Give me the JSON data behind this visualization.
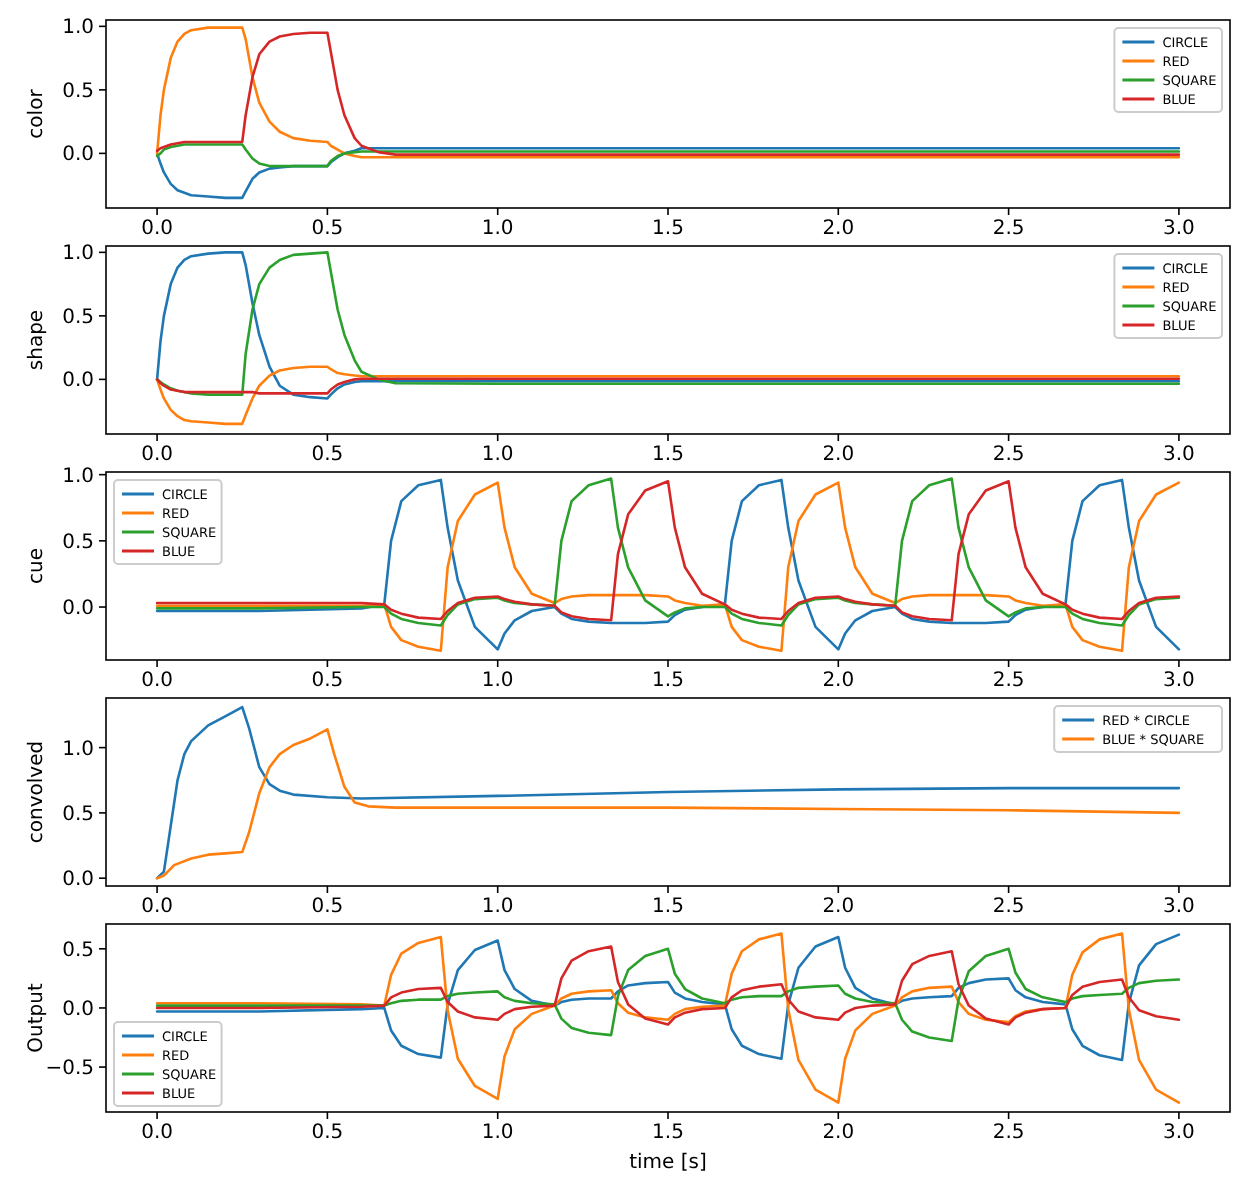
{
  "chart_data": [
    {
      "type": "line",
      "ylabel": "color",
      "xlim": [
        -0.15,
        3.15
      ],
      "ylim": [
        -0.43,
        1.05
      ],
      "xticks": [
        {
          "value": 0,
          "label": "0.0"
        },
        {
          "value": 0.5,
          "label": "0.5"
        },
        {
          "value": 1,
          "label": "1.0"
        },
        {
          "value": 1.5,
          "label": "1.5"
        },
        {
          "value": 2,
          "label": "2.0"
        },
        {
          "value": 2.5,
          "label": "2.5"
        },
        {
          "value": 3,
          "label": "3.0"
        }
      ],
      "yticks": [
        {
          "value": 0,
          "label": "0.0"
        },
        {
          "value": 0.5,
          "label": "0.5"
        },
        {
          "value": 1,
          "label": "1.0"
        }
      ],
      "legend": "top right",
      "x": [
        0,
        0.01,
        0.02,
        0.04,
        0.06,
        0.08,
        0.1,
        0.15,
        0.2,
        0.25,
        0.26,
        0.28,
        0.3,
        0.33,
        0.36,
        0.4,
        0.45,
        0.5,
        0.51,
        0.53,
        0.55,
        0.58,
        0.6,
        0.65,
        0.7,
        1.0,
        1.5,
        2.0,
        2.5,
        3.0
      ],
      "series": [
        {
          "name": "CIRCLE",
          "color": "#1f77b4",
          "values": [
            0,
            -0.08,
            -0.15,
            -0.24,
            -0.29,
            -0.31,
            -0.33,
            -0.34,
            -0.35,
            -0.35,
            -0.3,
            -0.2,
            -0.15,
            -0.12,
            -0.11,
            -0.1,
            -0.1,
            -0.1,
            -0.07,
            -0.03,
            0,
            0.02,
            0.04,
            0.04,
            0.04,
            0.04,
            0.04,
            0.04,
            0.04,
            0.04
          ]
        },
        {
          "name": "RED",
          "color": "#ff7f0e",
          "values": [
            0,
            0.3,
            0.5,
            0.75,
            0.88,
            0.94,
            0.97,
            0.99,
            0.99,
            0.99,
            0.9,
            0.6,
            0.4,
            0.25,
            0.17,
            0.12,
            0.1,
            0.09,
            0.06,
            0.03,
            0.0,
            -0.02,
            -0.03,
            -0.03,
            -0.03,
            -0.03,
            -0.03,
            -0.03,
            -0.03,
            -0.03
          ]
        },
        {
          "name": "SQUARE",
          "color": "#2ca02c",
          "values": [
            -0.02,
            0.0,
            0.03,
            0.05,
            0.06,
            0.07,
            0.07,
            0.07,
            0.07,
            0.07,
            0.03,
            -0.04,
            -0.08,
            -0.1,
            -0.1,
            -0.1,
            -0.1,
            -0.1,
            -0.06,
            -0.02,
            0,
            0.01,
            0.015,
            0.015,
            0.015,
            0.015,
            0.015,
            0.015,
            0.015,
            0.015
          ]
        },
        {
          "name": "BLUE",
          "color": "#d62728",
          "values": [
            0.02,
            0.04,
            0.05,
            0.07,
            0.08,
            0.09,
            0.09,
            0.09,
            0.09,
            0.09,
            0.3,
            0.6,
            0.78,
            0.88,
            0.92,
            0.94,
            0.95,
            0.95,
            0.8,
            0.5,
            0.3,
            0.12,
            0.06,
            0.01,
            -0.01,
            -0.01,
            -0.01,
            -0.01,
            -0.01,
            -0.01
          ]
        }
      ]
    },
    {
      "type": "line",
      "ylabel": "shape",
      "xlim": [
        -0.15,
        3.15
      ],
      "ylim": [
        -0.43,
        1.05
      ],
      "xticks": [
        {
          "value": 0,
          "label": "0.0"
        },
        {
          "value": 0.5,
          "label": "0.5"
        },
        {
          "value": 1,
          "label": "1.0"
        },
        {
          "value": 1.5,
          "label": "1.5"
        },
        {
          "value": 2,
          "label": "2.0"
        },
        {
          "value": 2.5,
          "label": "2.5"
        },
        {
          "value": 3,
          "label": "3.0"
        }
      ],
      "yticks": [
        {
          "value": 0,
          "label": "0.0"
        },
        {
          "value": 0.5,
          "label": "0.5"
        },
        {
          "value": 1,
          "label": "1.0"
        }
      ],
      "legend": "top right",
      "x": [
        0,
        0.01,
        0.02,
        0.04,
        0.06,
        0.08,
        0.1,
        0.15,
        0.2,
        0.25,
        0.26,
        0.28,
        0.3,
        0.33,
        0.36,
        0.4,
        0.45,
        0.5,
        0.51,
        0.53,
        0.55,
        0.58,
        0.6,
        0.65,
        0.7,
        1.0,
        1.5,
        2.0,
        2.5,
        3.0
      ],
      "series": [
        {
          "name": "CIRCLE",
          "color": "#1f77b4",
          "values": [
            0,
            0.3,
            0.5,
            0.75,
            0.88,
            0.94,
            0.97,
            0.99,
            1.0,
            1.0,
            0.9,
            0.6,
            0.35,
            0.1,
            -0.05,
            -0.12,
            -0.14,
            -0.15,
            -0.12,
            -0.07,
            -0.04,
            -0.02,
            -0.015,
            -0.015,
            -0.015,
            -0.015,
            -0.015,
            -0.015,
            -0.015,
            -0.015
          ]
        },
        {
          "name": "RED",
          "color": "#ff7f0e",
          "values": [
            0,
            -0.08,
            -0.15,
            -0.24,
            -0.29,
            -0.32,
            -0.33,
            -0.34,
            -0.35,
            -0.35,
            -0.28,
            -0.15,
            -0.05,
            0.03,
            0.07,
            0.09,
            0.1,
            0.1,
            0.08,
            0.05,
            0.04,
            0.03,
            0.025,
            0.025,
            0.025,
            0.025,
            0.025,
            0.025,
            0.025,
            0.025
          ]
        },
        {
          "name": "SQUARE",
          "color": "#2ca02c",
          "values": [
            0,
            -0.02,
            -0.04,
            -0.07,
            -0.09,
            -0.1,
            -0.11,
            -0.12,
            -0.12,
            -0.12,
            0.2,
            0.55,
            0.75,
            0.88,
            0.94,
            0.98,
            0.99,
            1.0,
            0.85,
            0.55,
            0.35,
            0.15,
            0.06,
            0.0,
            -0.03,
            -0.035,
            -0.035,
            -0.035,
            -0.035,
            -0.035
          ]
        },
        {
          "name": "BLUE",
          "color": "#d62728",
          "values": [
            0,
            -0.03,
            -0.05,
            -0.08,
            -0.09,
            -0.1,
            -0.1,
            -0.1,
            -0.1,
            -0.1,
            -0.1,
            -0.1,
            -0.11,
            -0.11,
            -0.11,
            -0.11,
            -0.11,
            -0.11,
            -0.08,
            -0.04,
            -0.02,
            0,
            0.005,
            0.005,
            0.005,
            0.005,
            0.005,
            0.005,
            0.005,
            0.005
          ]
        }
      ]
    },
    {
      "type": "line",
      "ylabel": "cue",
      "xlim": [
        -0.15,
        3.15
      ],
      "ylim": [
        -0.4,
        1.02
      ],
      "xticks": [
        {
          "value": 0,
          "label": "0.0"
        },
        {
          "value": 0.5,
          "label": "0.5"
        },
        {
          "value": 1,
          "label": "1.0"
        },
        {
          "value": 1.5,
          "label": "1.5"
        },
        {
          "value": 2,
          "label": "2.0"
        },
        {
          "value": 2.5,
          "label": "2.5"
        },
        {
          "value": 3,
          "label": "3.0"
        }
      ],
      "yticks": [
        {
          "value": 0,
          "label": "0.0"
        },
        {
          "value": 0.5,
          "label": "0.5"
        },
        {
          "value": 1,
          "label": "1.0"
        }
      ],
      "legend": "top left",
      "x": [
        0,
        0.3,
        0.6,
        0.667,
        0.687,
        0.717,
        0.767,
        0.833,
        0.853,
        0.883,
        0.933,
        1.0,
        1.02,
        1.05,
        1.1,
        1.167,
        1.187,
        1.217,
        1.267,
        1.333,
        1.353,
        1.383,
        1.433,
        1.5,
        1.52,
        1.55,
        1.6,
        1.667,
        1.687,
        1.717,
        1.767,
        1.833,
        1.853,
        1.883,
        1.933,
        2.0,
        2.02,
        2.05,
        2.1,
        2.167,
        2.187,
        2.217,
        2.267,
        2.333,
        2.353,
        2.383,
        2.433,
        2.5,
        2.52,
        2.55,
        2.6,
        2.667,
        2.687,
        2.717,
        2.767,
        2.833,
        2.853,
        2.883,
        2.933,
        3.0
      ],
      "series": [
        {
          "name": "CIRCLE",
          "color": "#1f77b4",
          "values": [
            -0.03,
            -0.03,
            -0.01,
            0.02,
            0.5,
            0.8,
            0.92,
            0.96,
            0.6,
            0.2,
            -0.15,
            -0.32,
            -0.2,
            -0.1,
            -0.03,
            0.0,
            -0.05,
            -0.09,
            -0.11,
            -0.12,
            -0.12,
            -0.12,
            -0.12,
            -0.11,
            -0.06,
            -0.02,
            0.0,
            0.02,
            0.5,
            0.8,
            0.92,
            0.96,
            0.6,
            0.2,
            -0.15,
            -0.32,
            -0.2,
            -0.1,
            -0.03,
            0.0,
            -0.05,
            -0.09,
            -0.11,
            -0.12,
            -0.12,
            -0.12,
            -0.12,
            -0.11,
            -0.06,
            -0.02,
            0.0,
            0.02,
            0.5,
            0.8,
            0.92,
            0.96,
            0.6,
            0.2,
            -0.15,
            -0.32
          ]
        },
        {
          "name": "RED",
          "color": "#ff7f0e",
          "values": [
            0.01,
            0.01,
            0.01,
            0.02,
            -0.15,
            -0.25,
            -0.3,
            -0.33,
            0.3,
            0.65,
            0.85,
            0.94,
            0.6,
            0.3,
            0.1,
            0.03,
            0.06,
            0.08,
            0.09,
            0.09,
            0.09,
            0.09,
            0.09,
            0.08,
            0.05,
            0.03,
            0.01,
            0.02,
            -0.15,
            -0.25,
            -0.3,
            -0.33,
            0.3,
            0.65,
            0.85,
            0.94,
            0.6,
            0.3,
            0.1,
            0.03,
            0.06,
            0.08,
            0.09,
            0.09,
            0.09,
            0.09,
            0.09,
            0.08,
            0.05,
            0.03,
            0.01,
            0.02,
            -0.15,
            -0.25,
            -0.3,
            -0.33,
            0.3,
            0.65,
            0.85,
            0.94
          ]
        },
        {
          "name": "SQUARE",
          "color": "#2ca02c",
          "values": [
            -0.01,
            -0.01,
            0.0,
            0.0,
            -0.05,
            -0.09,
            -0.12,
            -0.14,
            -0.06,
            0.02,
            0.06,
            0.07,
            0.05,
            0.03,
            0.02,
            0.01,
            0.5,
            0.8,
            0.92,
            0.97,
            0.6,
            0.3,
            0.05,
            -0.07,
            -0.04,
            -0.01,
            0.0,
            0.0,
            -0.05,
            -0.09,
            -0.12,
            -0.14,
            -0.06,
            0.02,
            0.06,
            0.07,
            0.05,
            0.03,
            0.02,
            0.01,
            0.5,
            0.8,
            0.92,
            0.97,
            0.6,
            0.3,
            0.05,
            -0.07,
            -0.04,
            -0.01,
            0.0,
            0.0,
            -0.05,
            -0.09,
            -0.12,
            -0.14,
            -0.06,
            0.02,
            0.06,
            0.07
          ]
        },
        {
          "name": "BLUE",
          "color": "#d62728",
          "values": [
            0.03,
            0.03,
            0.03,
            0.02,
            -0.02,
            -0.05,
            -0.08,
            -0.09,
            -0.03,
            0.03,
            0.07,
            0.08,
            0.06,
            0.04,
            0.02,
            0.01,
            -0.04,
            -0.07,
            -0.09,
            -0.1,
            0.4,
            0.7,
            0.88,
            0.95,
            0.6,
            0.3,
            0.1,
            0.02,
            -0.02,
            -0.05,
            -0.08,
            -0.09,
            -0.03,
            0.03,
            0.07,
            0.08,
            0.06,
            0.04,
            0.02,
            0.01,
            -0.04,
            -0.07,
            -0.09,
            -0.1,
            0.4,
            0.7,
            0.88,
            0.95,
            0.6,
            0.3,
            0.1,
            0.02,
            -0.02,
            -0.05,
            -0.08,
            -0.09,
            -0.03,
            0.03,
            0.07,
            0.08
          ]
        }
      ]
    },
    {
      "type": "line",
      "ylabel": "convolved",
      "xlim": [
        -0.15,
        3.15
      ],
      "ylim": [
        -0.06,
        1.38
      ],
      "xticks": [
        {
          "value": 0,
          "label": "0.0"
        },
        {
          "value": 0.5,
          "label": "0.5"
        },
        {
          "value": 1,
          "label": "1.0"
        },
        {
          "value": 1.5,
          "label": "1.5"
        },
        {
          "value": 2,
          "label": "2.0"
        },
        {
          "value": 2.5,
          "label": "2.5"
        },
        {
          "value": 3,
          "label": "3.0"
        }
      ],
      "yticks": [
        {
          "value": 0,
          "label": "0.0"
        },
        {
          "value": 0.5,
          "label": "0.5"
        },
        {
          "value": 1,
          "label": "1.0"
        }
      ],
      "legend": "top right",
      "series": [
        {
          "name": "RED * CIRCLE",
          "color": "#1f77b4",
          "x": [
            0,
            0.02,
            0.04,
            0.06,
            0.08,
            0.1,
            0.15,
            0.2,
            0.25,
            0.27,
            0.3,
            0.33,
            0.36,
            0.4,
            0.5,
            0.6,
            1.0,
            1.5,
            2.0,
            2.5,
            3.0
          ],
          "values": [
            0,
            0.05,
            0.4,
            0.75,
            0.95,
            1.05,
            1.17,
            1.24,
            1.31,
            1.15,
            0.85,
            0.72,
            0.67,
            0.64,
            0.62,
            0.61,
            0.63,
            0.66,
            0.68,
            0.69,
            0.69
          ]
        },
        {
          "name": "BLUE * SQUARE",
          "color": "#ff7f0e",
          "x": [
            0,
            0.02,
            0.05,
            0.1,
            0.15,
            0.2,
            0.25,
            0.27,
            0.3,
            0.33,
            0.36,
            0.4,
            0.45,
            0.5,
            0.52,
            0.55,
            0.58,
            0.62,
            0.7,
            1.0,
            1.5,
            2.0,
            2.5,
            3.0
          ],
          "values": [
            0,
            0.02,
            0.1,
            0.15,
            0.18,
            0.19,
            0.2,
            0.35,
            0.65,
            0.85,
            0.95,
            1.02,
            1.07,
            1.14,
            0.95,
            0.7,
            0.58,
            0.55,
            0.54,
            0.54,
            0.54,
            0.53,
            0.52,
            0.5
          ]
        }
      ]
    },
    {
      "type": "line",
      "ylabel": "Output",
      "xlabel": "time [s]",
      "xlim": [
        -0.15,
        3.15
      ],
      "ylim": [
        -0.88,
        0.71
      ],
      "xticks": [
        {
          "value": 0,
          "label": "0.0"
        },
        {
          "value": 0.5,
          "label": "0.5"
        },
        {
          "value": 1,
          "label": "1.0"
        },
        {
          "value": 1.5,
          "label": "1.5"
        },
        {
          "value": 2,
          "label": "2.0"
        },
        {
          "value": 2.5,
          "label": "2.5"
        },
        {
          "value": 3,
          "label": "3.0"
        }
      ],
      "yticks": [
        {
          "value": -0.5,
          "label": "−0.5"
        },
        {
          "value": 0,
          "label": "0.0"
        },
        {
          "value": 0.5,
          "label": "0.5"
        }
      ],
      "legend": "bottom left",
      "x": [
        0,
        0.3,
        0.6,
        0.667,
        0.687,
        0.717,
        0.767,
        0.833,
        0.853,
        0.883,
        0.933,
        1.0,
        1.02,
        1.05,
        1.1,
        1.167,
        1.187,
        1.217,
        1.267,
        1.333,
        1.353,
        1.383,
        1.433,
        1.5,
        1.52,
        1.55,
        1.6,
        1.667,
        1.687,
        1.717,
        1.767,
        1.833,
        1.853,
        1.883,
        1.933,
        2.0,
        2.02,
        2.05,
        2.1,
        2.167,
        2.187,
        2.217,
        2.267,
        2.333,
        2.353,
        2.383,
        2.433,
        2.5,
        2.52,
        2.55,
        2.6,
        2.667,
        2.687,
        2.717,
        2.767,
        2.833,
        2.853,
        2.883,
        2.933,
        3.0
      ],
      "series": [
        {
          "name": "CIRCLE",
          "color": "#1f77b4",
          "values": [
            -0.03,
            -0.03,
            -0.01,
            0,
            -0.19,
            -0.32,
            -0.39,
            -0.42,
            0.03,
            0.32,
            0.49,
            0.57,
            0.32,
            0.16,
            0.06,
            0.02,
            0.05,
            0.07,
            0.08,
            0.08,
            0.14,
            0.19,
            0.21,
            0.22,
            0.13,
            0.08,
            0.05,
            0.03,
            -0.18,
            -0.32,
            -0.39,
            -0.43,
            0.03,
            0.34,
            0.52,
            0.6,
            0.34,
            0.17,
            0.08,
            0.03,
            0.06,
            0.08,
            0.09,
            0.1,
            0.17,
            0.21,
            0.24,
            0.25,
            0.15,
            0.09,
            0.05,
            0.03,
            -0.18,
            -0.32,
            -0.4,
            -0.44,
            0.04,
            0.36,
            0.54,
            0.62
          ]
        },
        {
          "name": "RED",
          "color": "#ff7f0e",
          "values": [
            0.04,
            0.04,
            0.03,
            0.02,
            0.28,
            0.46,
            0.55,
            0.6,
            -0.02,
            -0.43,
            -0.66,
            -0.77,
            -0.41,
            -0.18,
            -0.05,
            0.02,
            0.08,
            0.12,
            0.14,
            0.15,
            0.04,
            -0.04,
            -0.08,
            -0.1,
            -0.05,
            -0.01,
            0.01,
            0.02,
            0.29,
            0.48,
            0.58,
            0.63,
            -0.01,
            -0.44,
            -0.69,
            -0.8,
            -0.43,
            -0.19,
            -0.05,
            0.02,
            0.09,
            0.14,
            0.17,
            0.18,
            0.05,
            -0.05,
            -0.1,
            -0.12,
            -0.07,
            -0.03,
            -0.01,
            0,
            0.28,
            0.47,
            0.58,
            0.63,
            -0.01,
            -0.44,
            -0.69,
            -0.8
          ]
        },
        {
          "name": "SQUARE",
          "color": "#2ca02c",
          "values": [
            0.02,
            0.02,
            0.02,
            0.02,
            0.04,
            0.06,
            0.07,
            0.07,
            0.1,
            0.12,
            0.13,
            0.14,
            0.09,
            0.06,
            0.04,
            0.03,
            -0.09,
            -0.17,
            -0.21,
            -0.23,
            0.1,
            0.32,
            0.44,
            0.5,
            0.29,
            0.16,
            0.08,
            0.04,
            0.07,
            0.09,
            0.1,
            0.1,
            0.14,
            0.17,
            0.18,
            0.19,
            0.12,
            0.08,
            0.05,
            0.04,
            -0.1,
            -0.2,
            -0.25,
            -0.28,
            0.07,
            0.31,
            0.44,
            0.5,
            0.3,
            0.16,
            0.09,
            0.05,
            0.08,
            0.1,
            0.11,
            0.12,
            0.17,
            0.21,
            0.23,
            0.24
          ]
        },
        {
          "name": "BLUE",
          "color": "#d62728",
          "values": [
            0.0,
            0.0,
            0.01,
            0.02,
            0.09,
            0.13,
            0.16,
            0.17,
            0.05,
            -0.03,
            -0.08,
            -0.1,
            -0.05,
            -0.01,
            0.01,
            0.02,
            0.25,
            0.4,
            0.48,
            0.52,
            0.22,
            0.03,
            -0.09,
            -0.14,
            -0.08,
            -0.04,
            -0.01,
            0,
            0.09,
            0.15,
            0.18,
            0.2,
            0.07,
            -0.03,
            -0.08,
            -0.1,
            -0.04,
            0,
            0.02,
            0.03,
            0.23,
            0.37,
            0.44,
            0.48,
            0.2,
            0.02,
            -0.09,
            -0.14,
            -0.08,
            -0.04,
            -0.01,
            0,
            0.11,
            0.18,
            0.22,
            0.24,
            0.09,
            -0.02,
            -0.07,
            -0.1
          ]
        }
      ]
    }
  ]
}
